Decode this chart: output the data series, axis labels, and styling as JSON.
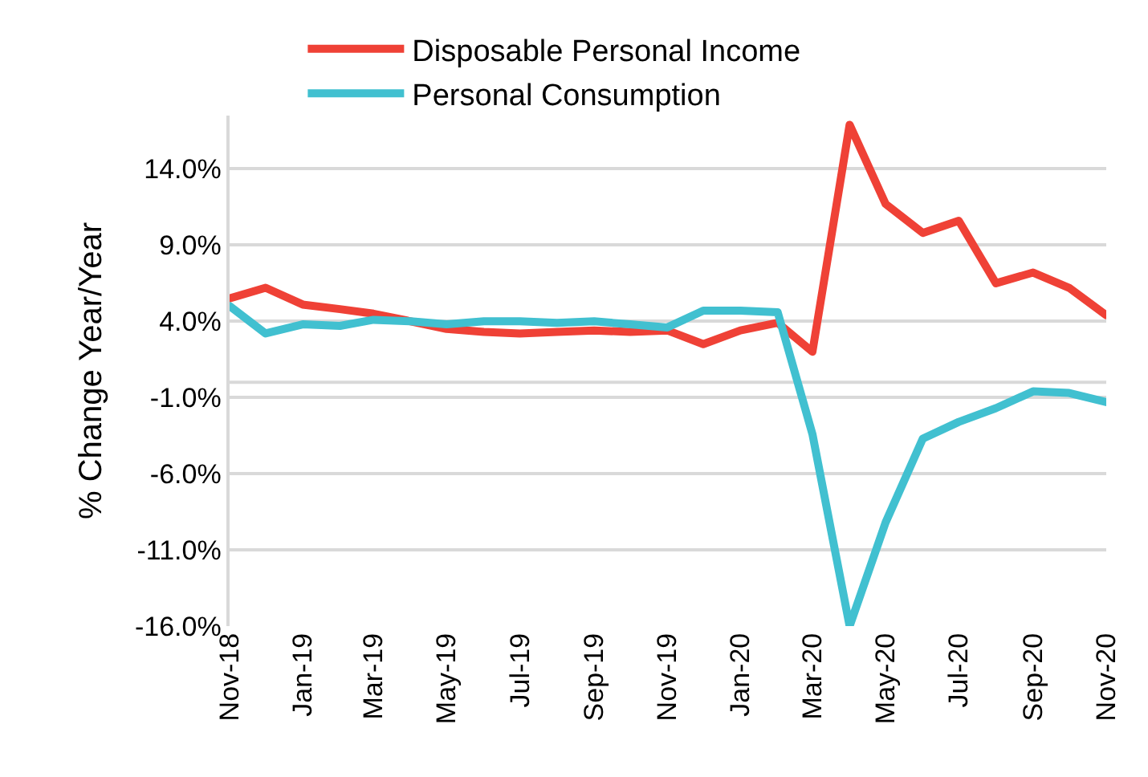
{
  "chart_data": {
    "type": "line",
    "ylabel": "% Change Year/Year",
    "x": [
      "2018-11",
      "2018-12",
      "2019-01",
      "2019-02",
      "2019-03",
      "2019-04",
      "2019-05",
      "2019-06",
      "2019-07",
      "2019-08",
      "2019-09",
      "2019-10",
      "2019-11",
      "2019-12",
      "2020-01",
      "2020-02",
      "2020-03",
      "2020-04",
      "2020-05",
      "2020-06",
      "2020-07",
      "2020-08",
      "2020-09",
      "2020-10",
      "2020-11"
    ],
    "series": [
      {
        "name": "Disposable Personal Income",
        "color": "#ef4136",
        "values": [
          5.5,
          6.2,
          5.1,
          4.8,
          4.5,
          4.0,
          3.5,
          3.3,
          3.2,
          3.3,
          3.4,
          3.3,
          3.4,
          2.5,
          3.4,
          3.9,
          2.0,
          16.9,
          11.7,
          9.8,
          10.6,
          6.5,
          7.2,
          6.2,
          4.4
        ]
      },
      {
        "name": "Personal Consumption",
        "color": "#41c0d0",
        "values": [
          5.0,
          3.2,
          3.8,
          3.7,
          4.1,
          4.0,
          3.8,
          4.0,
          4.0,
          3.9,
          4.0,
          3.8,
          3.6,
          4.7,
          4.7,
          4.6,
          -3.4,
          -16.0,
          -9.2,
          -3.7,
          -2.6,
          -1.7,
          -0.6,
          -0.7,
          -1.3
        ]
      }
    ],
    "xlim": [
      "2018-11",
      "2020-11"
    ],
    "xticks": [
      {
        "value": "2018-11",
        "label": "Nov-18"
      },
      {
        "value": "2019-01",
        "label": "Jan-19"
      },
      {
        "value": "2019-03",
        "label": "Mar-19"
      },
      {
        "value": "2019-05",
        "label": "May-19"
      },
      {
        "value": "2019-07",
        "label": "Jul-19"
      },
      {
        "value": "2019-09",
        "label": "Sep-19"
      },
      {
        "value": "2019-11",
        "label": "Nov-19"
      },
      {
        "value": "2020-01",
        "label": "Jan-20"
      },
      {
        "value": "2020-03",
        "label": "Mar-20"
      },
      {
        "value": "2020-05",
        "label": "May-20"
      },
      {
        "value": "2020-07",
        "label": "Jul-20"
      },
      {
        "value": "2020-09",
        "label": "Sep-20"
      },
      {
        "value": "2020-11",
        "label": "Nov-20"
      }
    ],
    "ylim": [
      -16,
      17.5
    ],
    "yticks": [
      {
        "value": -16,
        "label": "-16.0%"
      },
      {
        "value": -11,
        "label": "-11.0%"
      },
      {
        "value": -6,
        "label": "-6.0%"
      },
      {
        "value": -1,
        "label": "-1.0%"
      },
      {
        "value": 4,
        "label": "4.0%"
      },
      {
        "value": 9,
        "label": "9.0%"
      },
      {
        "value": 14,
        "label": "14.0%"
      }
    ],
    "ref_lines": [
      {
        "axis": "y",
        "value": 0,
        "color": "#d9d9d9"
      }
    ],
    "grid": "y",
    "legend": "top",
    "marker": "none",
    "line_style": "solid"
  }
}
